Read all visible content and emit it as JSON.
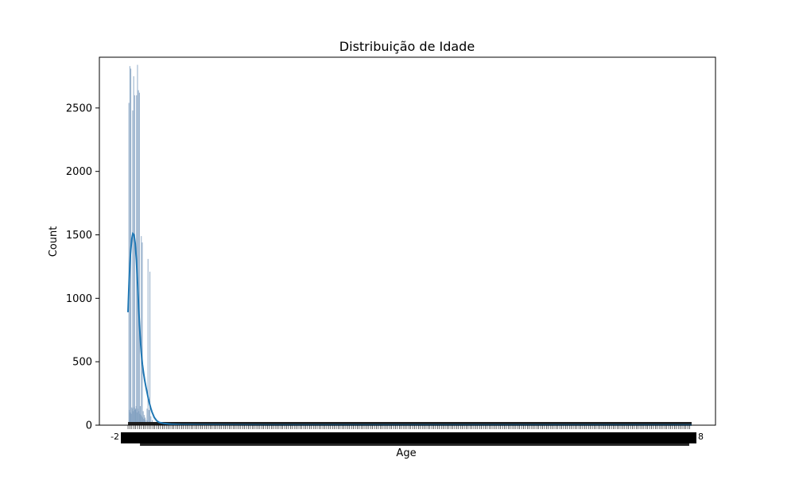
{
  "chart_data": {
    "type": "histogram",
    "title": "Distribuição de Idade",
    "xlabel": "Age",
    "ylabel": "Count",
    "ylim": [
      0,
      2900
    ],
    "y_ticks": [
      0,
      500,
      1000,
      1500,
      2000,
      2500
    ],
    "x_tick_labels_note": "hundreds of overlapping unreadable category labels",
    "x_tick_first": "-2",
    "x_tick_last": "8",
    "bar_color": "#6b8fb5",
    "kde_color": "#1f77b4",
    "bars": [
      {
        "x": 0.2,
        "h": 2540
      },
      {
        "x": 0.6,
        "h": 2830
      },
      {
        "x": 1.0,
        "h": 2810
      },
      {
        "x": 1.4,
        "h": 140
      },
      {
        "x": 1.8,
        "h": 2480
      },
      {
        "x": 2.2,
        "h": 2750
      },
      {
        "x": 2.6,
        "h": 2600
      },
      {
        "x": 3.0,
        "h": 130
      },
      {
        "x": 3.4,
        "h": 2600
      },
      {
        "x": 3.8,
        "h": 2840
      },
      {
        "x": 4.2,
        "h": 2640
      },
      {
        "x": 4.6,
        "h": 2620
      },
      {
        "x": 5.0,
        "h": 150
      },
      {
        "x": 5.4,
        "h": 1490
      },
      {
        "x": 5.8,
        "h": 1440
      },
      {
        "x": 6.2,
        "h": 110
      },
      {
        "x": 6.6,
        "h": 80
      },
      {
        "x": 7.0,
        "h": 60
      },
      {
        "x": 7.8,
        "h": 130
      },
      {
        "x": 8.2,
        "h": 1310
      },
      {
        "x": 8.6,
        "h": 120
      },
      {
        "x": 9.0,
        "h": 1210
      },
      {
        "x": 9.4,
        "h": 70
      },
      {
        "x": 10.0,
        "h": 40
      },
      {
        "x": 11.0,
        "h": 15
      },
      {
        "x": 13.0,
        "h": 8
      }
    ],
    "noise_bars": [
      {
        "x": 0.4,
        "h": 120
      },
      {
        "x": 0.8,
        "h": 100
      },
      {
        "x": 1.2,
        "h": 90
      },
      {
        "x": 1.6,
        "h": 130
      },
      {
        "x": 2.0,
        "h": 110
      },
      {
        "x": 2.4,
        "h": 140
      },
      {
        "x": 2.8,
        "h": 120
      },
      {
        "x": 3.2,
        "h": 150
      },
      {
        "x": 3.6,
        "h": 100
      },
      {
        "x": 4.0,
        "h": 130
      },
      {
        "x": 4.4,
        "h": 110
      },
      {
        "x": 4.8,
        "h": 90
      },
      {
        "x": 5.2,
        "h": 80
      },
      {
        "x": 5.6,
        "h": 70
      },
      {
        "x": 6.0,
        "h": 60
      },
      {
        "x": 6.4,
        "h": 50
      },
      {
        "x": 6.8,
        "h": 45
      },
      {
        "x": 7.4,
        "h": 40
      },
      {
        "x": 8.0,
        "h": 35
      },
      {
        "x": 8.8,
        "h": 30
      }
    ],
    "kde": [
      {
        "x": 0.0,
        "y": 890
      },
      {
        "x": 0.5,
        "y": 1150
      },
      {
        "x": 1.0,
        "y": 1350
      },
      {
        "x": 1.5,
        "y": 1460
      },
      {
        "x": 2.0,
        "y": 1510
      },
      {
        "x": 2.5,
        "y": 1500
      },
      {
        "x": 3.0,
        "y": 1430
      },
      {
        "x": 3.5,
        "y": 1300
      },
      {
        "x": 4.0,
        "y": 1110
      },
      {
        "x": 4.5,
        "y": 900
      },
      {
        "x": 5.0,
        "y": 720
      },
      {
        "x": 5.5,
        "y": 580
      },
      {
        "x": 6.0,
        "y": 480
      },
      {
        "x": 6.5,
        "y": 410
      },
      {
        "x": 7.0,
        "y": 350
      },
      {
        "x": 7.5,
        "y": 300
      },
      {
        "x": 8.0,
        "y": 255
      },
      {
        "x": 8.5,
        "y": 210
      },
      {
        "x": 9.0,
        "y": 170
      },
      {
        "x": 9.5,
        "y": 135
      },
      {
        "x": 10.0,
        "y": 105
      },
      {
        "x": 11.0,
        "y": 60
      },
      {
        "x": 12.0,
        "y": 35
      },
      {
        "x": 13.0,
        "y": 22
      },
      {
        "x": 15.0,
        "y": 14
      },
      {
        "x": 18.0,
        "y": 8
      },
      {
        "x": 22.0,
        "y": 5
      },
      {
        "x": 30.0,
        "y": 3
      },
      {
        "x": 60.0,
        "y": 2
      },
      {
        "x": 120.0,
        "y": 1
      },
      {
        "x": 200.0,
        "y": 1
      },
      {
        "x": 236.0,
        "y": 1
      }
    ],
    "xlim": [
      -12,
      246
    ]
  }
}
